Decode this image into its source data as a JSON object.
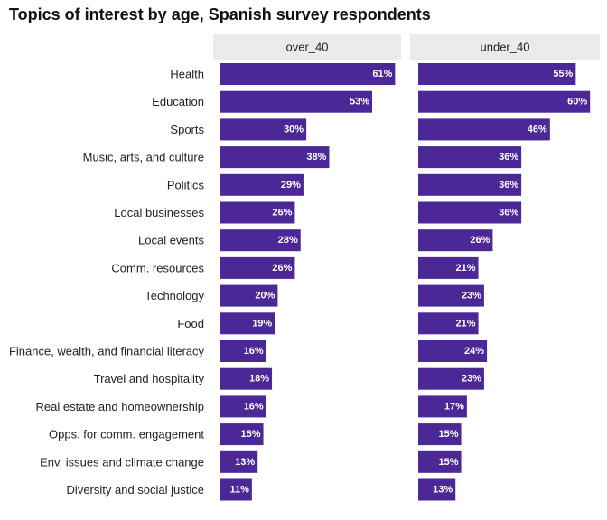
{
  "chart_data": {
    "type": "bar",
    "orientation": "horizontal",
    "title": "Topics of interest by age, Spanish survey respondents",
    "categories": [
      "Health",
      "Education",
      "Sports",
      "Music, arts, and culture",
      "Politics",
      "Local businesses",
      "Local events",
      "Comm. resources",
      "Technology",
      "Food",
      "Finance, wealth, and financial literacy",
      "Travel and hospitality",
      "Real estate and homeownership",
      "Opps. for comm. engagement",
      "Env. issues and climate change",
      "Diversity and social justice"
    ],
    "panels": [
      {
        "name": "over_40",
        "values": [
          61,
          53,
          30,
          38,
          29,
          26,
          28,
          26,
          20,
          19,
          16,
          18,
          16,
          15,
          13,
          11
        ],
        "labels": [
          "61%",
          "53%",
          "30%",
          "38%",
          "29%",
          "26%",
          "28%",
          "26%",
          "20%",
          "19%",
          "16%",
          "18%",
          "16%",
          "15%",
          "13%",
          "11%"
        ]
      },
      {
        "name": "under_40",
        "values": [
          55,
          60,
          46,
          36,
          36,
          36,
          26,
          21,
          23,
          21,
          24,
          23,
          17,
          15,
          15,
          13
        ],
        "labels": [
          "55%",
          "60%",
          "46%",
          "36%",
          "36%",
          "36%",
          "26%",
          "21%",
          "23%",
          "21%",
          "24%",
          "23%",
          "17%",
          "15%",
          "15%",
          "13%"
        ]
      }
    ],
    "xlim": [
      0,
      65
    ],
    "grid": false,
    "legend": "none",
    "bar_color": "#4b2896",
    "strip_color": "#ebebeb"
  }
}
